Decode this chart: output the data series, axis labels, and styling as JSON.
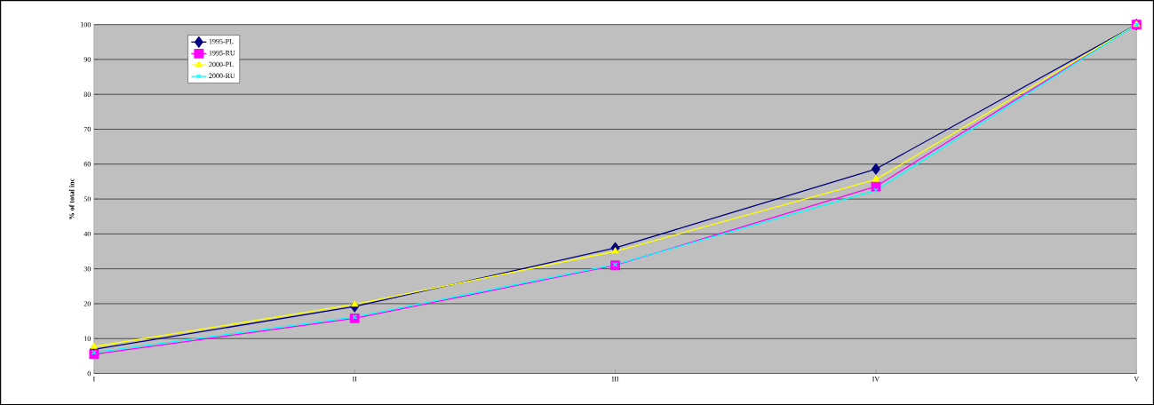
{
  "chart_data": {
    "type": "line",
    "ylabel": "% of total inc",
    "categories": [
      "I",
      "II",
      "III",
      "IV",
      "V"
    ],
    "series": [
      {
        "name": "1995-PL",
        "color": "#000080",
        "marker": "diamond",
        "values": [
          6.9,
          19.2,
          36,
          58.6,
          100
        ]
      },
      {
        "name": "1995-RU",
        "color": "#ff00ff",
        "marker": "square",
        "values": [
          5.5,
          15.8,
          31,
          53.6,
          100
        ]
      },
      {
        "name": "2000-PL",
        "color": "#ffff00",
        "marker": "triangle",
        "values": [
          7.7,
          19.8,
          35,
          55.6,
          100
        ]
      },
      {
        "name": "2000-RU",
        "color": "#00ffff",
        "marker": "cross",
        "values": [
          6,
          16.2,
          31.2,
          52.5,
          100
        ]
      }
    ],
    "ylim": [
      0,
      100
    ],
    "yticks": [
      0,
      10,
      20,
      30,
      40,
      50,
      60,
      70,
      80,
      90,
      100
    ],
    "grid": "y",
    "legend": "top left",
    "line_style": "solid"
  }
}
